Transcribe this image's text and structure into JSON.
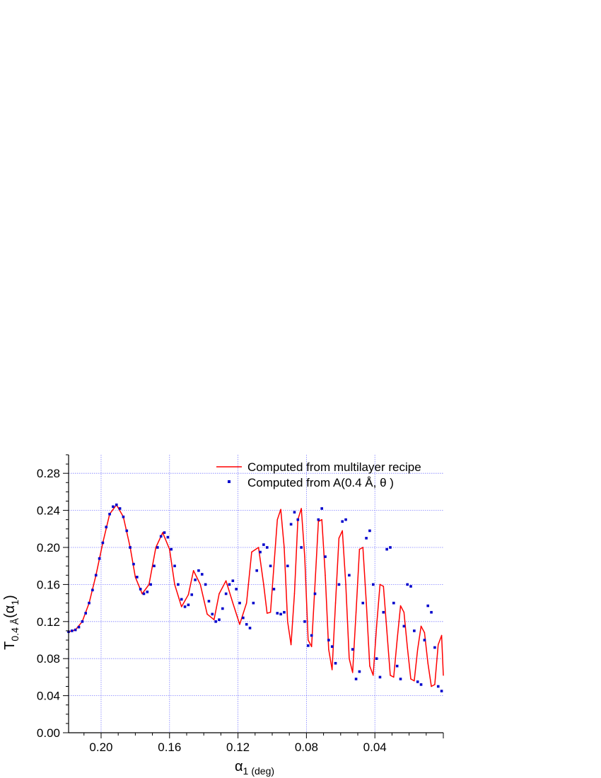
{
  "chart_data": {
    "type": "line",
    "x_axis_reversed": true,
    "xlim": [
      0.219,
      0.0
    ],
    "ylim": [
      0.0,
      0.3
    ],
    "xticks": [
      0.2,
      0.16,
      0.12,
      0.08,
      0.04
    ],
    "xtick_labels": [
      "0.20",
      "0.16",
      "0.12",
      "0.08",
      "0.04"
    ],
    "yticks": [
      0.0,
      0.04,
      0.08,
      0.12,
      0.16,
      0.2,
      0.24,
      0.28
    ],
    "ytick_labels": [
      "0.00",
      "0.04",
      "0.08",
      "0.12",
      "0.16",
      "0.20",
      "0.24",
      "0.28"
    ],
    "xlabel": {
      "symbol": "α",
      "sub": "1",
      "unit": "(deg)"
    },
    "ylabel": {
      "symbol": "T",
      "sub": "0.4 Å",
      "arg": "(α",
      "argsub": "1",
      "close": ")"
    },
    "grid": true,
    "grid_color": "#8080ff",
    "legend_position": "top-right",
    "series": [
      {
        "name": "Computed from multilayer recipe",
        "style": "line",
        "color": "#ff0000",
        "x": [
          0.219,
          0.215,
          0.211,
          0.207,
          0.203,
          0.199,
          0.195,
          0.191,
          0.187,
          0.183,
          0.18,
          0.176,
          0.172,
          0.168,
          0.164,
          0.16,
          0.157,
          0.153,
          0.149,
          0.146,
          0.142,
          0.138,
          0.134,
          0.131,
          0.127,
          0.123,
          0.119,
          0.115,
          0.112,
          0.108,
          0.105,
          0.103,
          0.101,
          0.099,
          0.097,
          0.095,
          0.093,
          0.091,
          0.089,
          0.087,
          0.085,
          0.083,
          0.081,
          0.079,
          0.077,
          0.075,
          0.073,
          0.071,
          0.069,
          0.067,
          0.065,
          0.063,
          0.061,
          0.059,
          0.057,
          0.055,
          0.053,
          0.051,
          0.049,
          0.047,
          0.045,
          0.043,
          0.041,
          0.039,
          0.037,
          0.035,
          0.033,
          0.031,
          0.029,
          0.027,
          0.025,
          0.023,
          0.021,
          0.019,
          0.017,
          0.015,
          0.013,
          0.011,
          0.009,
          0.007,
          0.005,
          0.003,
          0.001,
          0.0
        ],
        "y": [
          0.109,
          0.111,
          0.12,
          0.14,
          0.17,
          0.205,
          0.236,
          0.246,
          0.233,
          0.2,
          0.168,
          0.15,
          0.16,
          0.2,
          0.216,
          0.198,
          0.16,
          0.136,
          0.149,
          0.175,
          0.16,
          0.128,
          0.122,
          0.15,
          0.164,
          0.14,
          0.117,
          0.14,
          0.195,
          0.2,
          0.16,
          0.129,
          0.13,
          0.18,
          0.23,
          0.241,
          0.2,
          0.12,
          0.095,
          0.15,
          0.23,
          0.242,
          0.19,
          0.1,
          0.093,
          0.16,
          0.228,
          0.23,
          0.17,
          0.09,
          0.068,
          0.14,
          0.21,
          0.218,
          0.16,
          0.08,
          0.065,
          0.13,
          0.198,
          0.2,
          0.14,
          0.072,
          0.062,
          0.115,
          0.16,
          0.158,
          0.11,
          0.062,
          0.06,
          0.1,
          0.137,
          0.13,
          0.092,
          0.058,
          0.056,
          0.09,
          0.115,
          0.108,
          0.075,
          0.05,
          0.052,
          0.095,
          0.105,
          0.062
        ]
      },
      {
        "name": "Computed from A(0.4 Å, θ )",
        "style": "points",
        "color": "#0000cc",
        "x": [
          0.219,
          0.217,
          0.215,
          0.213,
          0.211,
          0.209,
          0.207,
          0.205,
          0.203,
          0.201,
          0.199,
          0.197,
          0.195,
          0.193,
          0.191,
          0.189,
          0.187,
          0.185,
          0.183,
          0.181,
          0.179,
          0.177,
          0.175,
          0.173,
          0.171,
          0.169,
          0.167,
          0.165,
          0.163,
          0.161,
          0.159,
          0.157,
          0.155,
          0.153,
          0.151,
          0.149,
          0.147,
          0.145,
          0.143,
          0.141,
          0.139,
          0.137,
          0.135,
          0.133,
          0.131,
          0.129,
          0.127,
          0.125,
          0.123,
          0.121,
          0.119,
          0.117,
          0.115,
          0.113,
          0.111,
          0.109,
          0.107,
          0.105,
          0.103,
          0.101,
          0.099,
          0.097,
          0.095,
          0.093,
          0.091,
          0.089,
          0.087,
          0.085,
          0.083,
          0.081,
          0.079,
          0.077,
          0.075,
          0.073,
          0.071,
          0.069,
          0.067,
          0.065,
          0.063,
          0.061,
          0.059,
          0.057,
          0.055,
          0.053,
          0.051,
          0.049,
          0.047,
          0.045,
          0.043,
          0.041,
          0.039,
          0.037,
          0.035,
          0.033,
          0.031,
          0.029,
          0.027,
          0.025,
          0.023,
          0.021,
          0.019,
          0.017,
          0.015,
          0.013,
          0.011,
          0.009,
          0.007,
          0.005,
          0.003,
          0.001
        ],
        "y": [
          0.109,
          0.11,
          0.111,
          0.114,
          0.12,
          0.129,
          0.14,
          0.154,
          0.17,
          0.188,
          0.205,
          0.222,
          0.236,
          0.244,
          0.246,
          0.242,
          0.233,
          0.218,
          0.2,
          0.182,
          0.168,
          0.155,
          0.15,
          0.152,
          0.16,
          0.18,
          0.2,
          0.212,
          0.216,
          0.211,
          0.198,
          0.18,
          0.16,
          0.144,
          0.136,
          0.138,
          0.149,
          0.165,
          0.175,
          0.171,
          0.16,
          0.142,
          0.128,
          0.12,
          0.122,
          0.134,
          0.15,
          0.16,
          0.164,
          0.155,
          0.14,
          0.124,
          0.117,
          0.113,
          0.14,
          0.175,
          0.195,
          0.203,
          0.2,
          0.18,
          0.155,
          0.129,
          0.128,
          0.13,
          0.18,
          0.225,
          0.238,
          0.23,
          0.2,
          0.12,
          0.094,
          0.105,
          0.15,
          0.23,
          0.242,
          0.19,
          0.1,
          0.093,
          0.075,
          0.16,
          0.228,
          0.23,
          0.17,
          0.09,
          0.058,
          0.066,
          0.14,
          0.21,
          0.218,
          0.16,
          0.08,
          0.06,
          0.13,
          0.198,
          0.2,
          0.14,
          0.072,
          0.058,
          0.115,
          0.16,
          0.158,
          0.11,
          0.055,
          0.052,
          0.1,
          0.137,
          0.13,
          0.092,
          0.05,
          0.045
        ]
      }
    ],
    "legend": [
      {
        "label": "Computed from multilayer recipe",
        "marker": "line",
        "color": "#ff0000"
      },
      {
        "label": "Computed from A(0.4 Å, θ )",
        "marker": "square",
        "color": "#0000cc"
      }
    ]
  }
}
